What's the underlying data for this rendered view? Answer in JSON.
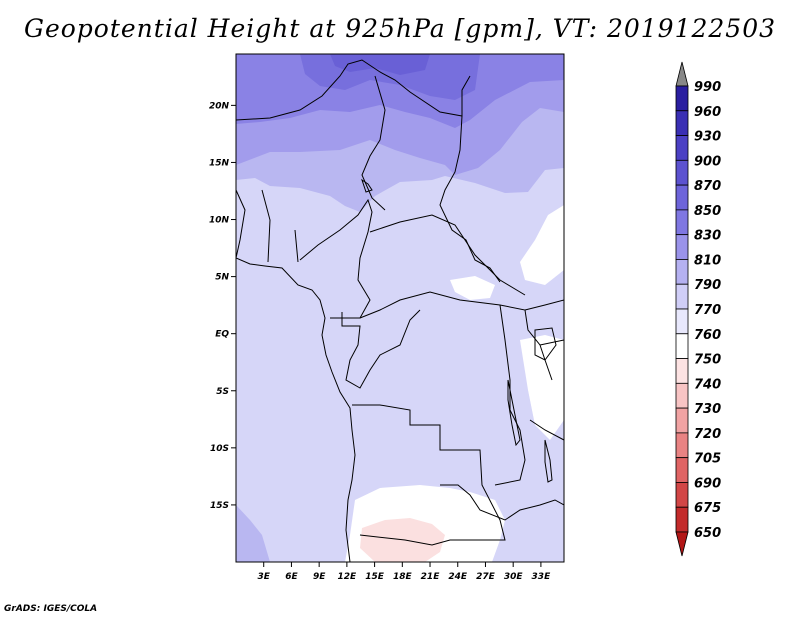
{
  "title": "Geopotential Height at 925hPa [gpm], VT: 2019122503",
  "credit": "GrADS: IGES/COLA",
  "map": {
    "lon_range": [
      0,
      35.5
    ],
    "lat_range": [
      -20,
      24.5
    ],
    "lon_ticks": [
      "3E",
      "6E",
      "9E",
      "12E",
      "15E",
      "18E",
      "21E",
      "24E",
      "27E",
      "30E",
      "33E"
    ],
    "lat_ticks": [
      "20N",
      "15N",
      "10N",
      "5N",
      "EQ",
      "5S",
      "10S",
      "15S"
    ]
  },
  "colorbar": {
    "labels": [
      "990",
      "960",
      "930",
      "900",
      "870",
      "850",
      "830",
      "810",
      "790",
      "770",
      "760",
      "750",
      "740",
      "730",
      "720",
      "705",
      "690",
      "675",
      "650"
    ],
    "colors": [
      "#888888",
      "#2a1ea0",
      "#3a2fb4",
      "#4b40c4",
      "#5c52d0",
      "#6d64da",
      "#7f77e2",
      "#9a93ea",
      "#b5b1f1",
      "#d0cef7",
      "#e8e8fc",
      "#ffffff",
      "#fde3e3",
      "#f8c4c4",
      "#f1a3a3",
      "#e98383",
      "#e06464",
      "#d24646",
      "#c32b2b",
      "#b21616"
    ]
  }
}
